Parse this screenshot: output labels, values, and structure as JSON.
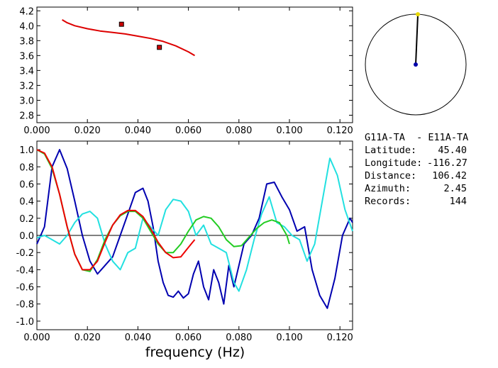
{
  "colors": {
    "axis": "#000000",
    "model_curve": "#dd0000",
    "measured_points": "#cc0000",
    "blue_series": "#0000b0",
    "cyan_series": "#22e0e0",
    "green_series": "#22cc22",
    "red_series": "#ee0000",
    "station_dot": "#0000aa",
    "source_dot": "#e8d800"
  },
  "info": {
    "pair": "G11A-TA  - E11A-TA",
    "rows": [
      {
        "label": "Latitude:",
        "value": "45.40"
      },
      {
        "label": "Longitude:",
        "value": "-116.27"
      },
      {
        "label": "Distance:",
        "value": "106.42"
      },
      {
        "label": "Azimuth:",
        "value": "2.45"
      },
      {
        "label": "Records:",
        "value": "144"
      }
    ]
  },
  "compass": {
    "azimuth_deg": 2.45
  },
  "chart_data": [
    {
      "type": "line",
      "xlim": [
        0.0,
        0.125
      ],
      "ylim": [
        2.7,
        4.25
      ],
      "x_ticks": [
        "0.000",
        "0.020",
        "0.040",
        "0.060",
        "0.080",
        "0.100",
        "0.120"
      ],
      "y_ticks": [
        "2.8",
        "3.0",
        "3.2",
        "3.4",
        "3.6",
        "3.8",
        "4.0",
        "4.2"
      ],
      "series": [
        {
          "color_key": "model_curve",
          "x": [
            0.01,
            0.012,
            0.015,
            0.02,
            0.025,
            0.03,
            0.035,
            0.04,
            0.045,
            0.05,
            0.055,
            0.06,
            0.0625
          ],
          "y": [
            4.08,
            4.04,
            4.0,
            3.96,
            3.93,
            3.91,
            3.89,
            3.86,
            3.83,
            3.79,
            3.73,
            3.65,
            3.6
          ]
        }
      ],
      "points": [
        {
          "x": 0.0335,
          "y": 4.02
        },
        {
          "x": 0.0485,
          "y": 3.71
        }
      ]
    },
    {
      "type": "line",
      "xlabel": "frequency  (Hz)",
      "xlim": [
        0.0,
        0.125
      ],
      "ylim": [
        -1.1,
        1.1
      ],
      "x_ticks": [
        "0.000",
        "0.020",
        "0.040",
        "0.060",
        "0.080",
        "0.100",
        "0.120"
      ],
      "y_ticks": [
        "1.0",
        "0.8",
        "0.6",
        "0.4",
        "0.2",
        "0.0",
        "-0.2",
        "-0.4",
        "-0.6",
        "-0.8",
        "-1.0"
      ],
      "zero_line": true,
      "series": [
        {
          "color_key": "blue_series",
          "x": [
            0.0,
            0.003,
            0.006,
            0.009,
            0.012,
            0.015,
            0.018,
            0.021,
            0.024,
            0.027,
            0.03,
            0.033,
            0.036,
            0.039,
            0.042,
            0.044,
            0.046,
            0.048,
            0.05,
            0.052,
            0.054,
            0.056,
            0.058,
            0.06,
            0.062,
            0.064,
            0.066,
            0.068,
            0.07,
            0.072,
            0.074,
            0.076,
            0.078,
            0.08,
            0.082,
            0.085,
            0.088,
            0.091,
            0.094,
            0.097,
            0.1,
            0.103,
            0.106,
            0.109,
            0.112,
            0.115,
            0.118,
            0.121,
            0.124,
            0.125
          ],
          "y": [
            -0.1,
            0.1,
            0.8,
            1.0,
            0.78,
            0.4,
            0.0,
            -0.3,
            -0.45,
            -0.35,
            -0.25,
            0.0,
            0.25,
            0.5,
            0.55,
            0.4,
            0.1,
            -0.3,
            -0.55,
            -0.7,
            -0.72,
            -0.65,
            -0.73,
            -0.68,
            -0.45,
            -0.3,
            -0.6,
            -0.75,
            -0.4,
            -0.55,
            -0.8,
            -0.35,
            -0.6,
            -0.35,
            -0.1,
            0.0,
            0.2,
            0.6,
            0.62,
            0.45,
            0.3,
            0.05,
            0.1,
            -0.4,
            -0.7,
            -0.85,
            -0.5,
            0.0,
            0.2,
            0.15
          ]
        },
        {
          "color_key": "cyan_series",
          "x": [
            0.0,
            0.003,
            0.006,
            0.009,
            0.012,
            0.015,
            0.018,
            0.021,
            0.024,
            0.027,
            0.03,
            0.033,
            0.036,
            0.039,
            0.042,
            0.045,
            0.048,
            0.051,
            0.054,
            0.057,
            0.06,
            0.063,
            0.066,
            0.069,
            0.072,
            0.075,
            0.078,
            0.08,
            0.083,
            0.086,
            0.089,
            0.092,
            0.095,
            0.098,
            0.101,
            0.104,
            0.107,
            0.11,
            0.113,
            0.116,
            0.119,
            0.122,
            0.125
          ],
          "y": [
            -0.03,
            0.0,
            -0.05,
            -0.1,
            0.0,
            0.15,
            0.25,
            0.28,
            0.2,
            -0.1,
            -0.3,
            -0.4,
            -0.2,
            -0.15,
            0.2,
            0.1,
            0.0,
            0.3,
            0.42,
            0.4,
            0.28,
            0.0,
            0.12,
            -0.1,
            -0.15,
            -0.2,
            -0.55,
            -0.65,
            -0.4,
            -0.05,
            0.25,
            0.45,
            0.15,
            0.1,
            0.0,
            -0.05,
            -0.3,
            -0.1,
            0.4,
            0.9,
            0.7,
            0.3,
            0.05
          ]
        },
        {
          "color_key": "green_series",
          "x": [
            0.0,
            0.003,
            0.006,
            0.009,
            0.012,
            0.015,
            0.018,
            0.021,
            0.024,
            0.027,
            0.03,
            0.033,
            0.036,
            0.039,
            0.042,
            0.045,
            0.048,
            0.051,
            0.054,
            0.057,
            0.06,
            0.063,
            0.066,
            0.069,
            0.072,
            0.075,
            0.078,
            0.081,
            0.084,
            0.087,
            0.09,
            0.093,
            0.096,
            0.099,
            0.1
          ],
          "y": [
            1.0,
            0.95,
            0.78,
            0.48,
            0.1,
            -0.22,
            -0.4,
            -0.42,
            -0.28,
            -0.05,
            0.12,
            0.23,
            0.28,
            0.28,
            0.2,
            0.05,
            -0.1,
            -0.2,
            -0.2,
            -0.1,
            0.05,
            0.18,
            0.22,
            0.2,
            0.1,
            -0.05,
            -0.13,
            -0.12,
            -0.02,
            0.08,
            0.15,
            0.18,
            0.15,
            0.0,
            -0.1
          ]
        },
        {
          "color_key": "red_series",
          "x": [
            0.0,
            0.003,
            0.006,
            0.009,
            0.012,
            0.015,
            0.018,
            0.021,
            0.024,
            0.027,
            0.03,
            0.033,
            0.036,
            0.039,
            0.042,
            0.045,
            0.048,
            0.051,
            0.054,
            0.057,
            0.06,
            0.0625
          ],
          "y": [
            1.0,
            0.96,
            0.8,
            0.48,
            0.1,
            -0.22,
            -0.4,
            -0.4,
            -0.3,
            -0.08,
            0.12,
            0.24,
            0.29,
            0.29,
            0.22,
            0.08,
            -0.08,
            -0.2,
            -0.26,
            -0.25,
            -0.14,
            -0.05
          ]
        }
      ]
    }
  ]
}
